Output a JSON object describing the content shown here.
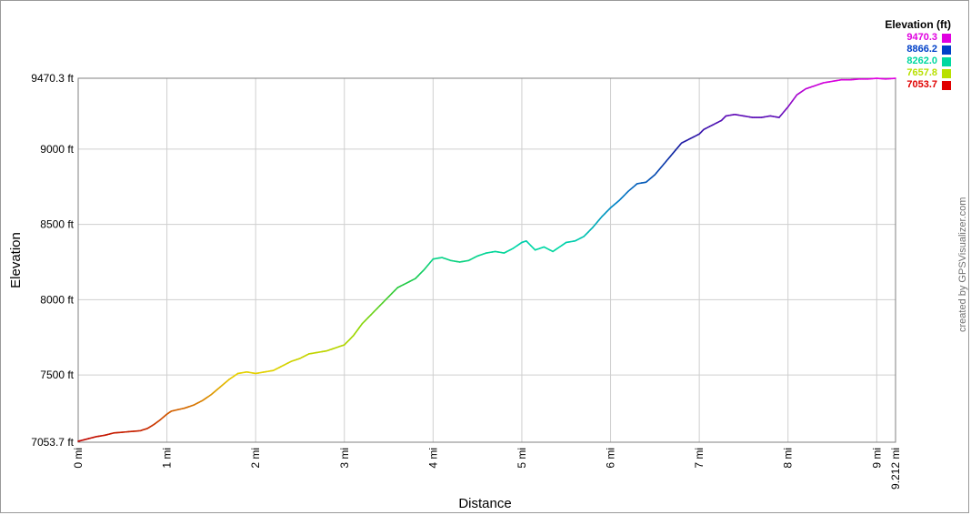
{
  "chart_data": {
    "type": "line",
    "xlabel": "Distance",
    "ylabel": "Elevation",
    "xlim": [
      0,
      9.212
    ],
    "ylim": [
      7053.7,
      9470.3
    ],
    "x_ticks": [
      {
        "value": 0,
        "label": "0 mi"
      },
      {
        "value": 1,
        "label": "1 mi"
      },
      {
        "value": 2,
        "label": "2 mi"
      },
      {
        "value": 3,
        "label": "3 mi"
      },
      {
        "value": 4,
        "label": "4 mi"
      },
      {
        "value": 5,
        "label": "5 mi"
      },
      {
        "value": 6,
        "label": "6 mi"
      },
      {
        "value": 7,
        "label": "7 mi"
      },
      {
        "value": 8,
        "label": "8 mi"
      },
      {
        "value": 9,
        "label": "9 mi"
      },
      {
        "value": 9.212,
        "label": "9.212 mi"
      }
    ],
    "y_ticks": [
      {
        "value": 7053.7,
        "label": "7053.7 ft"
      },
      {
        "value": 7500,
        "label": "7500 ft"
      },
      {
        "value": 8000,
        "label": "8000 ft"
      },
      {
        "value": 8500,
        "label": "8500 ft"
      },
      {
        "value": 9000,
        "label": "9000 ft"
      },
      {
        "value": 9470.3,
        "label": "9470.3 ft"
      }
    ],
    "grid": true,
    "legend": {
      "title": "Elevation (ft)",
      "placement": "top-right",
      "entries": [
        {
          "label": "9470.3",
          "color": "#e000e0"
        },
        {
          "label": "8866.2",
          "color": "#0040c8"
        },
        {
          "label": "8262.0",
          "color": "#00d8a0"
        },
        {
          "label": "7657.8",
          "color": "#b8e000"
        },
        {
          "label": "7053.7",
          "color": "#e00000"
        }
      ]
    },
    "color_scale": [
      {
        "value": 7053.7,
        "color": "#c00000"
      },
      {
        "value": 7500,
        "color": "#e8d000"
      },
      {
        "value": 7800,
        "color": "#98d800"
      },
      {
        "value": 8100,
        "color": "#20c840"
      },
      {
        "value": 8350,
        "color": "#00d8a8"
      },
      {
        "value": 8650,
        "color": "#0080c8"
      },
      {
        "value": 9000,
        "color": "#1020a0"
      },
      {
        "value": 9220,
        "color": "#6010b8"
      },
      {
        "value": 9470.3,
        "color": "#e000e0"
      }
    ],
    "series": [
      {
        "x": [
          0,
          0.1,
          0.2,
          0.3,
          0.4,
          0.5,
          0.6,
          0.7,
          0.78,
          0.85,
          0.92,
          1.0,
          1.05,
          1.2,
          1.3,
          1.4,
          1.5,
          1.6,
          1.7,
          1.8,
          1.9,
          2.0,
          2.1,
          2.2,
          2.3,
          2.4,
          2.5,
          2.6,
          2.7,
          2.8,
          2.9,
          3.0,
          3.1,
          3.2,
          3.4,
          3.6,
          3.8,
          3.9,
          4.0,
          4.1,
          4.2,
          4.3,
          4.4,
          4.5,
          4.6,
          4.7,
          4.8,
          4.9,
          5.0,
          5.05,
          5.15,
          5.25,
          5.35,
          5.45,
          5.5,
          5.6,
          5.7,
          5.8,
          5.9,
          6.0,
          6.1,
          6.2,
          6.3,
          6.4,
          6.5,
          6.6,
          6.7,
          6.8,
          6.9,
          7.0,
          7.05,
          7.15,
          7.25,
          7.3,
          7.4,
          7.5,
          7.6,
          7.7,
          7.8,
          7.9,
          8.0,
          8.1,
          8.2,
          8.3,
          8.4,
          8.5,
          8.6,
          8.7,
          8.8,
          8.9,
          9.0,
          9.1,
          9.212
        ],
        "y": [
          7060,
          7075,
          7090,
          7100,
          7115,
          7120,
          7125,
          7130,
          7145,
          7170,
          7200,
          7240,
          7260,
          7280,
          7300,
          7330,
          7370,
          7420,
          7470,
          7510,
          7520,
          7510,
          7520,
          7530,
          7560,
          7590,
          7610,
          7640,
          7650,
          7660,
          7680,
          7700,
          7760,
          7840,
          7960,
          8080,
          8140,
          8200,
          8270,
          8280,
          8260,
          8250,
          8260,
          8290,
          8310,
          8320,
          8310,
          8340,
          8380,
          8390,
          8330,
          8350,
          8320,
          8360,
          8380,
          8390,
          8420,
          8480,
          8550,
          8610,
          8660,
          8720,
          8770,
          8780,
          8830,
          8900,
          8970,
          9040,
          9070,
          9100,
          9130,
          9160,
          9190,
          9220,
          9230,
          9220,
          9210,
          9210,
          9220,
          9210,
          9280,
          9360,
          9400,
          9420,
          9440,
          9450,
          9460,
          9460,
          9465,
          9465,
          9470,
          9465,
          9470
        ]
      }
    ]
  },
  "credit": "created by GPSVisualizer.com"
}
